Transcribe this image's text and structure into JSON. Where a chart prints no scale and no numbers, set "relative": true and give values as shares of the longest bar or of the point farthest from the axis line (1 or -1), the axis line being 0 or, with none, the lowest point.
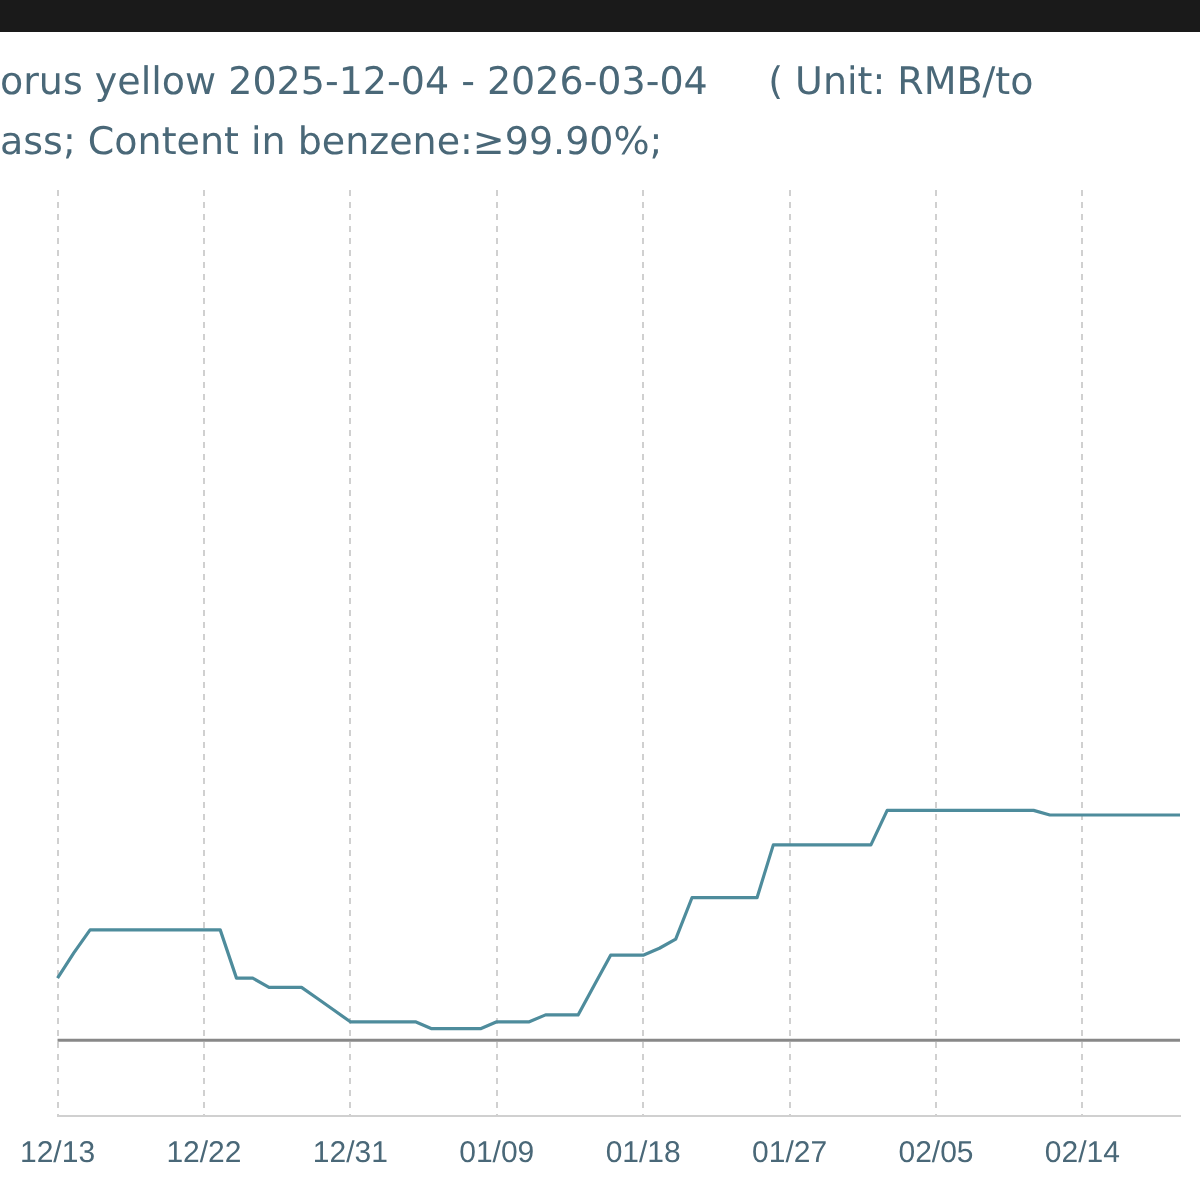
{
  "chart_data": {
    "type": "line",
    "title": "orus yellow 2025-12-04 - 2026-03-04     ( Unit: RMB/to",
    "subtitle": "ass; Content in benzene:≥99.90%;",
    "categories": [
      "12/13",
      null,
      null,
      null,
      null,
      null,
      null,
      null,
      null,
      "12/22",
      null,
      null,
      null,
      null,
      null,
      null,
      null,
      null,
      "12/31",
      null,
      null,
      null,
      null,
      null,
      null,
      null,
      null,
      "01/09",
      null,
      null,
      null,
      null,
      null,
      null,
      null,
      null,
      "01/18",
      null,
      null,
      null,
      null,
      null,
      null,
      null,
      null,
      "01/27",
      null,
      null,
      null,
      null,
      null,
      null,
      null,
      null,
      "02/05",
      null,
      null,
      null,
      null,
      null,
      null,
      null,
      null,
      "02/14",
      null,
      null,
      null,
      null,
      null,
      null
    ],
    "series": [
      {
        "color": "#4e8c9c",
        "values": [
          0.27,
          0.38,
          0.48,
          0.48,
          0.48,
          0.48,
          0.48,
          0.48,
          0.48,
          0.48,
          0.48,
          0.27,
          0.27,
          0.23,
          0.23,
          0.23,
          0.18,
          0.13,
          0.08,
          0.08,
          0.08,
          0.08,
          0.08,
          0.05,
          0.05,
          0.05,
          0.05,
          0.08,
          0.08,
          0.08,
          0.11,
          0.11,
          0.11,
          0.24,
          0.37,
          0.37,
          0.37,
          0.4,
          0.44,
          0.62,
          0.62,
          0.62,
          0.62,
          0.62,
          0.85,
          0.85,
          0.85,
          0.85,
          0.85,
          0.85,
          0.85,
          1,
          1,
          1,
          1,
          1,
          1,
          1,
          1,
          1,
          1,
          0.98,
          0.98,
          0.98,
          0.98,
          0.98,
          0.98,
          0.98,
          0.98,
          0.98
        ]
      }
    ],
    "relative": true,
    "grid": "x",
    "legend": false,
    "marker": "none",
    "line_style": "solid"
  }
}
